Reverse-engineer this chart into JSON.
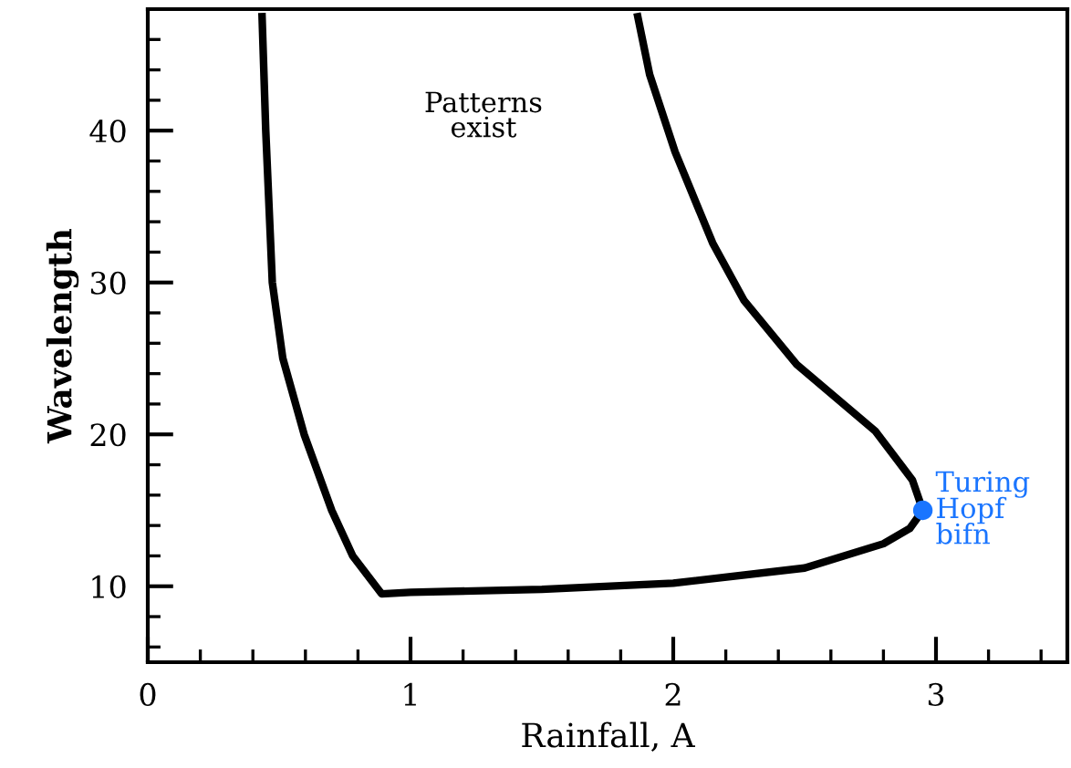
{
  "chart_data": {
    "type": "line",
    "xlabel": "Rainfall, A",
    "ylabel": "Wavelength",
    "xlim": [
      0,
      3.5
    ],
    "ylim": [
      5,
      48
    ],
    "xticks": [
      0,
      1,
      2,
      3
    ],
    "yticks": [
      10,
      20,
      30,
      40
    ],
    "grid": false,
    "series": [
      {
        "color": "#000000",
        "marker": "none",
        "line_style": "solid",
        "x": [
          0.435,
          0.449,
          0.474,
          0.514,
          0.595,
          0.7,
          0.78,
          0.89,
          1.0,
          1.5,
          2.0,
          2.5,
          2.8,
          2.9,
          2.95,
          2.91,
          2.77,
          2.47,
          2.27,
          2.15,
          2.007,
          1.91,
          1.865
        ],
        "values": [
          47.5,
          40,
          30,
          25,
          20,
          15,
          12,
          9.5,
          9.6,
          9.8,
          10.2,
          11.2,
          12.8,
          13.8,
          15,
          17,
          20.2,
          24.6,
          28.8,
          32.6,
          38.6,
          43.7,
          47.5
        ]
      },
      {
        "type": "scatter",
        "color": "#1a75ff",
        "marker": "circle",
        "x": [
          2.95
        ],
        "values": [
          15
        ]
      }
    ],
    "annotations": [
      "Patterns\nexist",
      {
        "text": "Turing\nHopf\nbifn",
        "x": 2.95,
        "y": 15
      }
    ]
  }
}
